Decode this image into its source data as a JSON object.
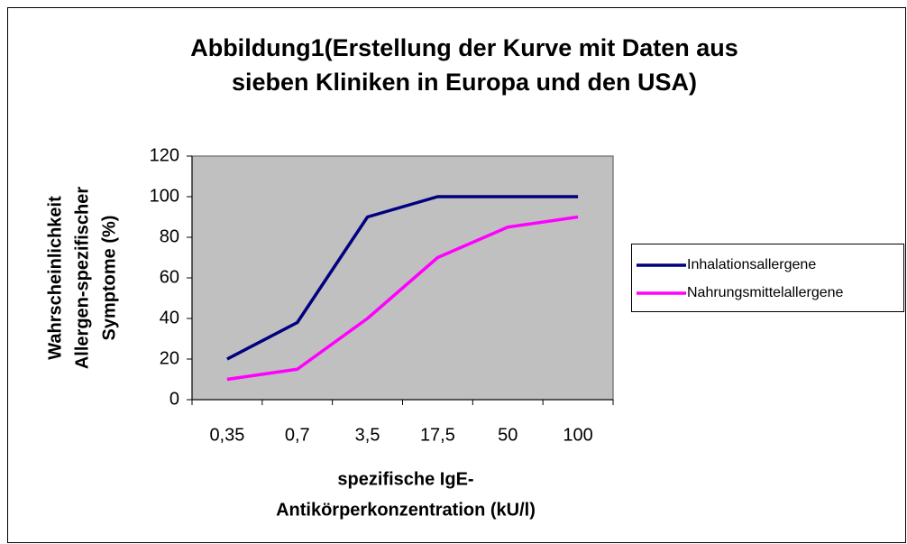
{
  "chart_data": {
    "type": "line",
    "title": [
      "Abbildung1(Erstellung der Kurve mit Daten aus",
      "sieben Kliniken in Europa und den USA)"
    ],
    "y_label": [
      "Wahrscheinlichkeit",
      "Allergen-spezifischer",
      "Symptome (%)"
    ],
    "x_label": [
      "spezifische IgE-",
      "Antikörperkonzentration (kU/l)"
    ],
    "categories": [
      "0,35",
      "0,7",
      "3,5",
      "17,5",
      "50",
      "100"
    ],
    "series": [
      {
        "name": "Inhalationsallergene",
        "color": "#000080",
        "values": [
          20,
          38,
          90,
          100,
          100,
          100
        ]
      },
      {
        "name": "Nahrungsmittelallergene",
        "color": "#ff00ff",
        "values": [
          10,
          15,
          40,
          70,
          85,
          90
        ]
      }
    ],
    "ylim": [
      0,
      120
    ],
    "yticks": [
      0,
      20,
      40,
      60,
      80,
      100,
      120
    ],
    "grid": false,
    "legend": "right",
    "plot_background": "#c0c0c0"
  }
}
